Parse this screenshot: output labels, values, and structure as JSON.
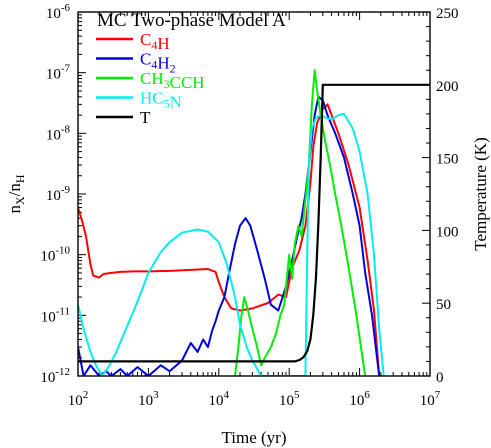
{
  "chart_data": {
    "type": "line",
    "title": "MC Two-phase Model A",
    "xlabel": "Time (yr)",
    "ylabel_left": "n_X/n_H",
    "ylabel_right": "Temperature (K)",
    "x_scale": "log",
    "y_scale": "log",
    "xlim": [
      100,
      10000000
    ],
    "ylim": [
      1e-12,
      1e-06
    ],
    "y2lim": [
      0,
      250
    ],
    "x_tick_labels": [
      "10^2",
      "10^3",
      "10^4",
      "10^5",
      "10^6",
      "10^7"
    ],
    "y_tick_labels": [
      "10^-12",
      "10^-11",
      "10^-10",
      "10^-9",
      "10^-8",
      "10^-7",
      "10^-6"
    ],
    "y2_tick_labels": [
      "0",
      "50",
      "100",
      "150",
      "200",
      "250"
    ],
    "grid": false,
    "legend_position": "top-left",
    "series": [
      {
        "name": "C4H",
        "color": "#ff0000",
        "axis": "left",
        "points": [
          [
            100,
            6e-10
          ],
          [
            115,
            3.5e-10
          ],
          [
            130,
            2e-10
          ],
          [
            150,
            7e-11
          ],
          [
            165,
            4.5e-11
          ],
          [
            200,
            4.2e-11
          ],
          [
            230,
            4.8e-11
          ],
          [
            300,
            5e-11
          ],
          [
            400,
            5.2e-11
          ],
          [
            600,
            5.3e-11
          ],
          [
            1000,
            5.3e-11
          ],
          [
            2000,
            5.4e-11
          ],
          [
            4000,
            5.6e-11
          ],
          [
            7000,
            5.8e-11
          ],
          [
            9000,
            5.2e-11
          ],
          [
            10000,
            3.5e-11
          ],
          [
            12000,
            2e-11
          ],
          [
            15000,
            1.3e-11
          ],
          [
            20000,
            1.2e-11
          ],
          [
            30000,
            1.3e-11
          ],
          [
            50000,
            1.6e-11
          ],
          [
            70000,
            2.2e-11
          ],
          [
            90000,
            2e-11
          ],
          [
            110000,
            6e-11
          ],
          [
            140000,
            1.2e-10
          ],
          [
            170000,
            3e-10
          ],
          [
            200000,
            1.5e-09
          ],
          [
            220000,
            6e-09
          ],
          [
            250000,
            1.5e-08
          ],
          [
            300000,
            2.5e-08
          ],
          [
            350000,
            3e-08
          ],
          [
            400000,
            2e-08
          ],
          [
            500000,
            1e-08
          ],
          [
            700000,
            3e-09
          ],
          [
            1000000,
            6e-10
          ],
          [
            1300000,
            8e-11
          ],
          [
            1600000,
            1.2e-11
          ],
          [
            1900000,
            1e-12
          ]
        ]
      },
      {
        "name": "C4H2",
        "color": "#0000dd",
        "axis": "left",
        "points": [
          [
            100,
            3e-12
          ],
          [
            120,
            1e-12
          ],
          [
            150,
            1.5e-12
          ],
          [
            200,
            1e-12
          ],
          [
            250,
            1.2e-12
          ],
          [
            300,
            1e-12
          ],
          [
            400,
            1.3e-12
          ],
          [
            500,
            1e-12
          ],
          [
            700,
            1.4e-12
          ],
          [
            1000,
            1e-12
          ],
          [
            1500,
            1.5e-12
          ],
          [
            2000,
            1.2e-12
          ],
          [
            3000,
            1.8e-12
          ],
          [
            4000,
            3.5e-12
          ],
          [
            5000,
            2.5e-12
          ],
          [
            6000,
            4e-12
          ],
          [
            7000,
            3e-12
          ],
          [
            8000,
            5.5e-12
          ],
          [
            9000,
            8e-12
          ],
          [
            10000,
            1.2e-11
          ],
          [
            12000,
            2e-11
          ],
          [
            14000,
            5e-11
          ],
          [
            17000,
            1.5e-10
          ],
          [
            20000,
            3e-10
          ],
          [
            24000,
            4e-10
          ],
          [
            28000,
            3e-10
          ],
          [
            35000,
            1.2e-10
          ],
          [
            45000,
            4e-11
          ],
          [
            55000,
            1.5e-11
          ],
          [
            70000,
            1.2e-11
          ],
          [
            90000,
            3e-11
          ],
          [
            110000,
            8e-11
          ],
          [
            130000,
            2e-10
          ],
          [
            150000,
            4e-10
          ],
          [
            170000,
            1e-09
          ],
          [
            200000,
            5e-09
          ],
          [
            230000,
            2e-08
          ],
          [
            260000,
            4e-08
          ],
          [
            300000,
            3.5e-08
          ],
          [
            350000,
            2e-08
          ],
          [
            450000,
            1e-08
          ],
          [
            600000,
            4e-09
          ],
          [
            800000,
            1e-09
          ],
          [
            1000000,
            3e-10
          ],
          [
            1200000,
            5e-11
          ],
          [
            1500000,
            1e-11
          ],
          [
            1900000,
            1e-12
          ]
        ]
      },
      {
        "name": "CH3CCH",
        "color": "#00ee00",
        "axis": "left",
        "points": [
          [
            17000,
            1e-12
          ],
          [
            19000,
            3e-12
          ],
          [
            21000,
            1e-11
          ],
          [
            23000,
            2e-11
          ],
          [
            26000,
            1.2e-11
          ],
          [
            30000,
            6e-12
          ],
          [
            35000,
            3e-12
          ],
          [
            40000,
            1.5e-12
          ],
          [
            45000,
            2e-12
          ],
          [
            55000,
            3e-12
          ],
          [
            65000,
            5e-12
          ],
          [
            75000,
            1e-11
          ],
          [
            85000,
            1.5e-11
          ],
          [
            100000,
            1e-10
          ],
          [
            110000,
            4e-11
          ],
          [
            120000,
            1.5e-10
          ],
          [
            135000,
            3e-10
          ],
          [
            150000,
            2e-10
          ],
          [
            170000,
            8e-10
          ],
          [
            190000,
            3e-09
          ],
          [
            210000,
            3e-08
          ],
          [
            230000,
            1.1e-07
          ],
          [
            250000,
            5e-08
          ],
          [
            280000,
            2e-08
          ],
          [
            320000,
            8e-09
          ],
          [
            380000,
            3e-09
          ],
          [
            450000,
            1e-09
          ],
          [
            550000,
            3e-10
          ],
          [
            700000,
            6e-11
          ],
          [
            900000,
            1e-11
          ],
          [
            1100000,
            2e-12
          ],
          [
            1200000,
            1e-12
          ]
        ]
      },
      {
        "name": "HC5N",
        "color": "#00eeee",
        "axis": "left",
        "points": [
          [
            100,
            1.5e-11
          ],
          [
            120,
            6e-12
          ],
          [
            150,
            2.5e-12
          ],
          [
            180,
            1.5e-12
          ],
          [
            220,
            1e-12
          ],
          [
            280,
            1.5e-12
          ],
          [
            350,
            2.5e-12
          ],
          [
            450,
            5e-12
          ],
          [
            600,
            1.1e-11
          ],
          [
            800,
            2.5e-11
          ],
          [
            1000,
            5e-11
          ],
          [
            1500,
            1.1e-10
          ],
          [
            2000,
            1.6e-10
          ],
          [
            3000,
            2.3e-10
          ],
          [
            5000,
            2.6e-10
          ],
          [
            7000,
            2.4e-10
          ],
          [
            10000,
            1.6e-10
          ],
          [
            13000,
            7e-11
          ],
          [
            17000,
            2e-11
          ],
          [
            20000,
            7e-12
          ],
          [
            25000,
            3e-12
          ],
          [
            30000,
            1.8e-12
          ],
          [
            40000,
            1e-12
          ],
          [
            170000,
            1e-12
          ],
          [
            180000,
            1e-10
          ],
          [
            190000,
            3e-09
          ],
          [
            210000,
            1.2e-08
          ],
          [
            240000,
            1.8e-08
          ],
          [
            280000,
            2e-08
          ],
          [
            330000,
            1.8e-08
          ],
          [
            400000,
            1.7e-08
          ],
          [
            500000,
            2e-08
          ],
          [
            600000,
            2.1e-08
          ],
          [
            800000,
            1.2e-08
          ],
          [
            1000000,
            5e-09
          ],
          [
            1300000,
            1e-09
          ],
          [
            1600000,
            1e-10
          ],
          [
            1900000,
            6e-12
          ],
          [
            2200000,
            1e-12
          ]
        ]
      },
      {
        "name": "T",
        "color": "#000000",
        "axis": "right",
        "points": [
          [
            100,
            10
          ],
          [
            120000,
            10
          ],
          [
            140000,
            11
          ],
          [
            160000,
            13
          ],
          [
            180000,
            17
          ],
          [
            200000,
            25
          ],
          [
            220000,
            42
          ],
          [
            240000,
            68
          ],
          [
            260000,
            105
          ],
          [
            280000,
            150
          ],
          [
            300000,
            200
          ],
          [
            10000000,
            200
          ]
        ]
      }
    ]
  }
}
